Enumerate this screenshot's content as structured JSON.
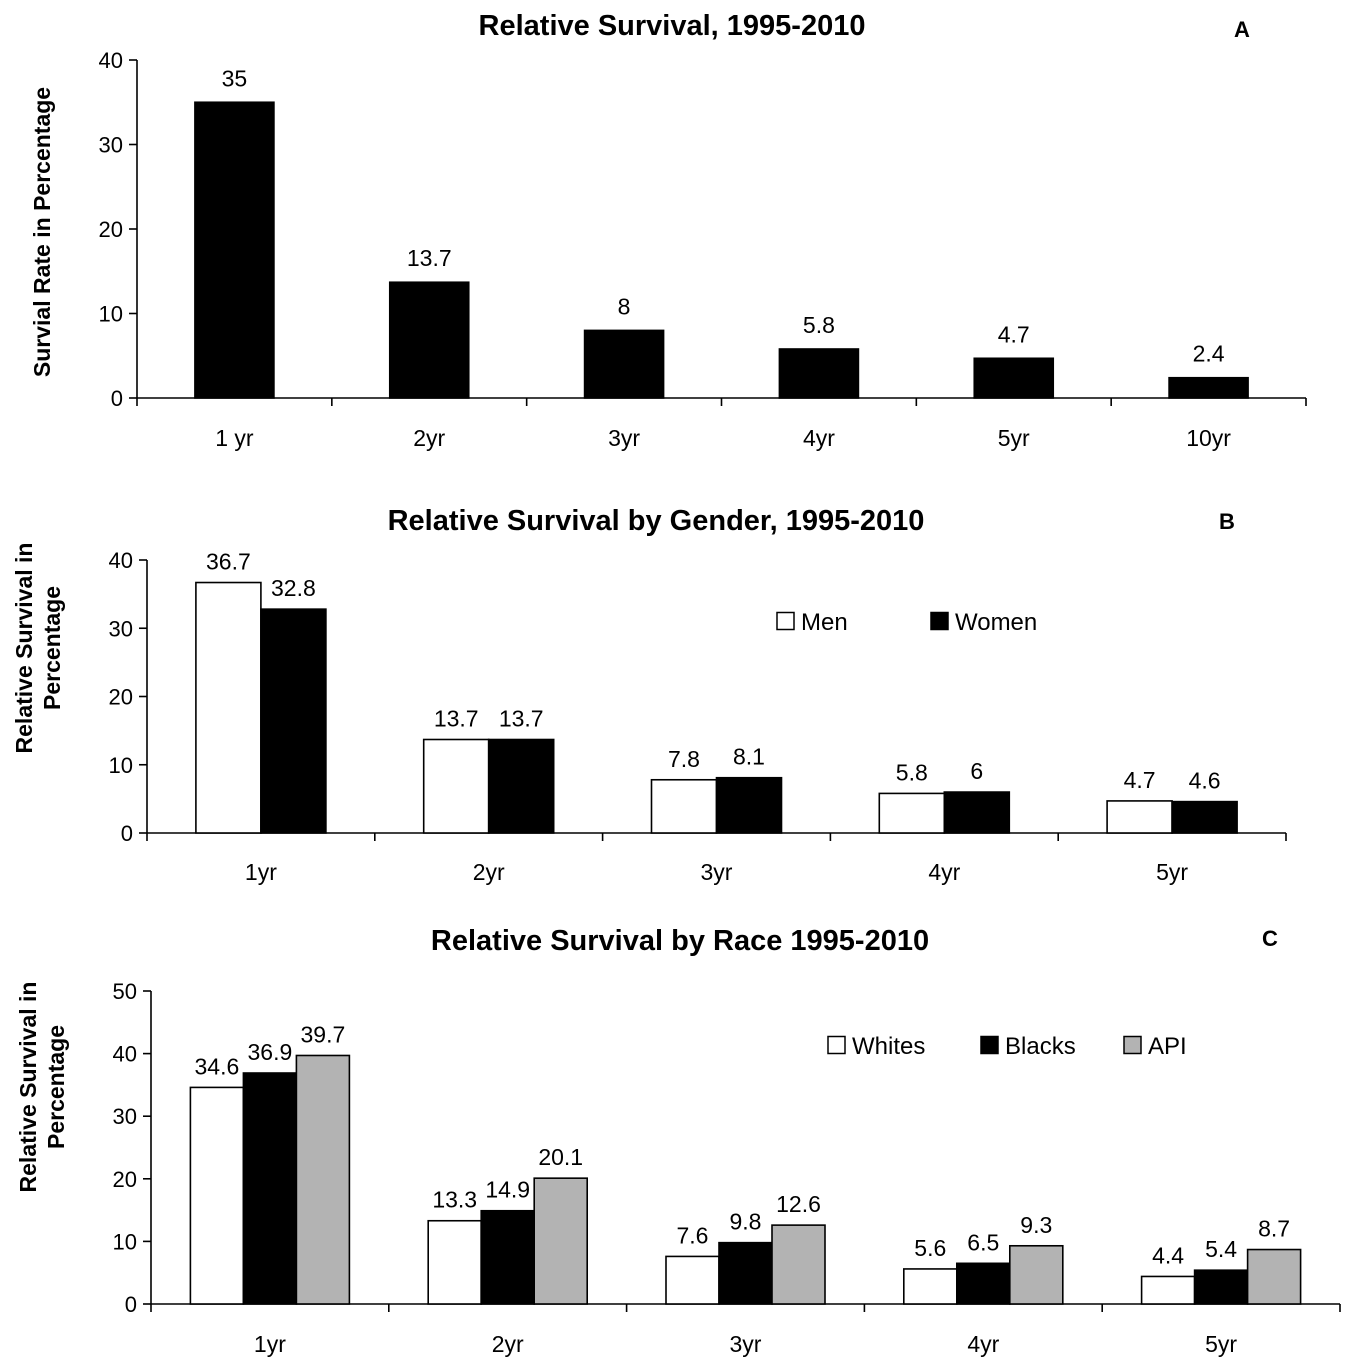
{
  "chart_data": [
    {
      "type": "bar",
      "title": "Relative Survival, 1995-2010",
      "panel_label": "A",
      "ylabel": [
        "Survial Rate in Percentage"
      ],
      "xlabel": "",
      "categories": [
        "1 yr",
        "2yr",
        "3yr",
        "4yr",
        "5yr",
        "10yr"
      ],
      "series": [
        {
          "color": "#000000",
          "values": [
            35,
            13.7,
            8,
            5.8,
            4.7,
            2.4
          ]
        }
      ],
      "data_labels": [
        [
          "35",
          "13.7",
          "8",
          "5.8",
          "4.7",
          "2.4"
        ]
      ],
      "ylim": [
        0,
        40
      ],
      "yticks": [
        0,
        10,
        20,
        30,
        40
      ],
      "grid": false,
      "legend": null
    },
    {
      "type": "bar",
      "title": "Relative Survival by Gender, 1995-2010",
      "panel_label": "B",
      "ylabel": [
        "Relative Survival in",
        "Percentage"
      ],
      "xlabel": "",
      "categories": [
        "1yr",
        "2yr",
        "3yr",
        "4yr",
        "5yr"
      ],
      "series": [
        {
          "name": "Men",
          "color": "#ffffff",
          "values": [
            36.7,
            13.7,
            7.8,
            5.8,
            4.7
          ]
        },
        {
          "name": "Women",
          "color": "#000000",
          "values": [
            32.8,
            13.7,
            8.1,
            6,
            4.6
          ]
        }
      ],
      "data_labels": [
        [
          "36.7",
          "13.7",
          "7.8",
          "5.8",
          "4.7"
        ],
        [
          "32.8",
          "13.7",
          "8.1",
          "6",
          "4.6"
        ]
      ],
      "ylim": [
        0,
        40
      ],
      "yticks": [
        0,
        10,
        20,
        30,
        40
      ],
      "grid": false,
      "legend": "top-right, horizontal"
    },
    {
      "type": "bar",
      "title": "Relative Survival by Race 1995-2010",
      "panel_label": "C",
      "ylabel": [
        "Relative Survival in",
        "Percentage"
      ],
      "xlabel": "",
      "categories": [
        "1yr",
        "2yr",
        "3yr",
        "4yr",
        "5yr"
      ],
      "series": [
        {
          "name": "Whites",
          "color": "#ffffff",
          "values": [
            34.6,
            13.3,
            7.6,
            5.6,
            4.4
          ]
        },
        {
          "name": "Blacks",
          "color": "#000000",
          "values": [
            36.9,
            14.9,
            9.8,
            6.5,
            5.4
          ]
        },
        {
          "name": "API",
          "color": "#b3b3b3",
          "values": [
            39.7,
            20.1,
            12.6,
            9.3,
            8.7
          ]
        }
      ],
      "data_labels": [
        [
          "34.6",
          "13.3",
          "7.6",
          "5.6",
          "4.4"
        ],
        [
          "36.9",
          "14.9",
          "9.8",
          "6.5",
          "5.4"
        ],
        [
          "39.7",
          "20.1",
          "12.6",
          "9.3",
          "8.7"
        ]
      ],
      "ylim": [
        0,
        50
      ],
      "yticks": [
        0,
        10,
        20,
        30,
        40,
        50
      ],
      "grid": false,
      "legend": "top-right, horizontal"
    }
  ]
}
